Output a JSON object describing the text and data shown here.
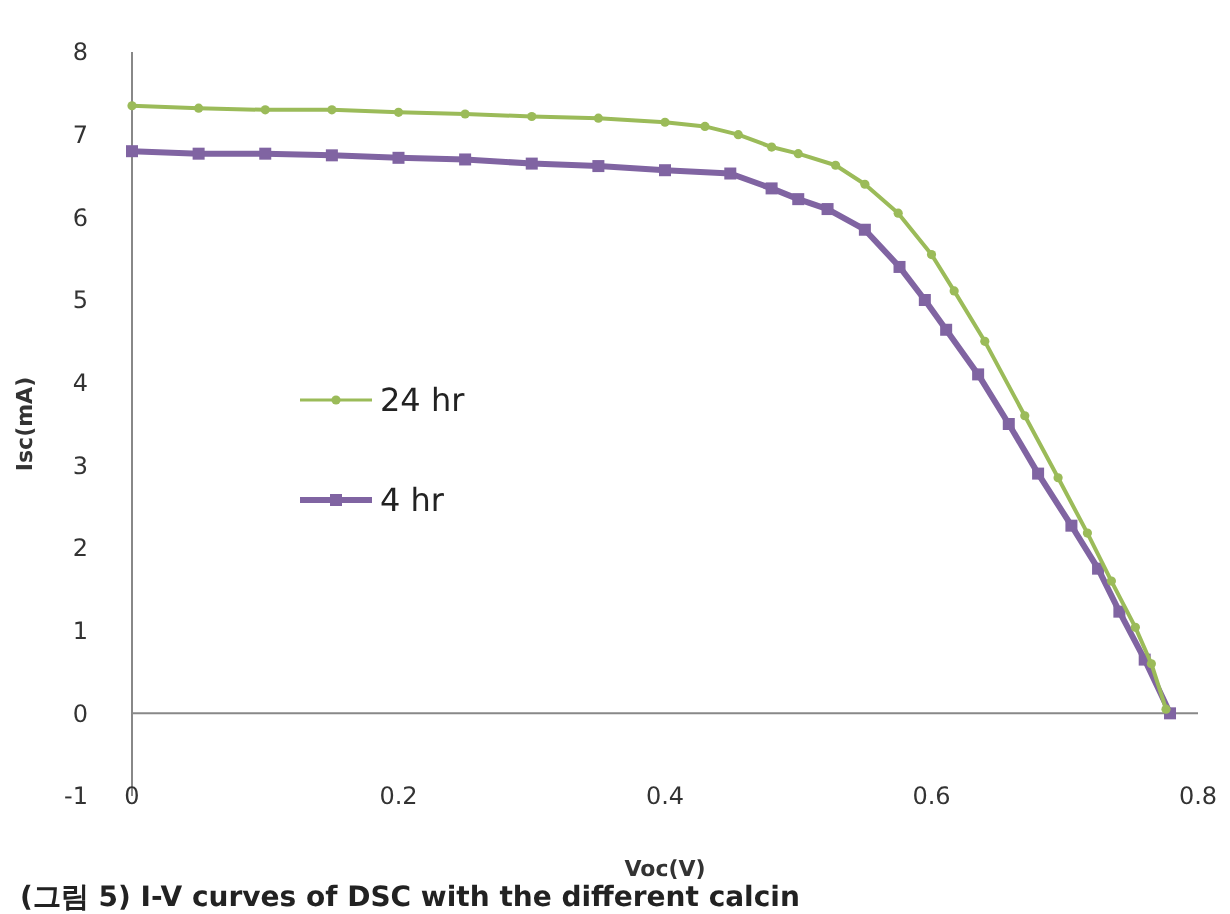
{
  "chart_data": {
    "type": "line",
    "xlabel": "Voc(V)",
    "ylabel": "Isc(mA)",
    "xlim": [
      0,
      0.8
    ],
    "ylim": [
      -1,
      8
    ],
    "xticks": [
      0,
      {
        "value": 0.2,
        "label": "0.2"
      },
      {
        "value": 0.4,
        "label": "0.4"
      },
      {
        "value": 0.6,
        "label": "0.6"
      },
      {
        "value": 0.8,
        "label": "0.8"
      }
    ],
    "yticks": [
      -1,
      0,
      1,
      2,
      3,
      4,
      5,
      6,
      7,
      8
    ],
    "legend": "left",
    "annotations": [
      "(그림 5) I-V curves of DSC with the different calcin"
    ],
    "series": [
      {
        "name": "24 hr",
        "color": "#9bbb59",
        "marker": "circle",
        "x": [
          0,
          0.05,
          0.1,
          0.15,
          0.2,
          0.25,
          0.3,
          0.35,
          0.4,
          0.43,
          0.455,
          0.48,
          0.5,
          0.528,
          0.55,
          0.575,
          0.6,
          0.617,
          0.64,
          0.67,
          0.695,
          0.717,
          0.735,
          0.753,
          0.765,
          0.776
        ],
        "values": [
          7.35,
          7.32,
          7.3,
          7.3,
          7.27,
          7.25,
          7.22,
          7.2,
          7.15,
          7.1,
          7.0,
          6.85,
          6.77,
          6.63,
          6.4,
          6.05,
          5.55,
          5.11,
          4.5,
          3.6,
          2.85,
          2.18,
          1.6,
          1.04,
          0.6,
          0.05
        ]
      },
      {
        "name": "4 hr",
        "color": "#8064a2",
        "marker": "square",
        "x": [
          0,
          0.05,
          0.1,
          0.15,
          0.2,
          0.25,
          0.3,
          0.35,
          0.4,
          0.449,
          0.48,
          0.5,
          0.522,
          0.55,
          0.576,
          0.595,
          0.611,
          0.635,
          0.658,
          0.68,
          0.705,
          0.725,
          0.741,
          0.76,
          0.779
        ],
        "values": [
          6.8,
          6.77,
          6.77,
          6.75,
          6.72,
          6.7,
          6.65,
          6.62,
          6.57,
          6.53,
          6.35,
          6.22,
          6.1,
          5.85,
          5.4,
          5.0,
          4.64,
          4.1,
          3.5,
          2.9,
          2.27,
          1.75,
          1.23,
          0.65,
          0
        ]
      }
    ]
  }
}
